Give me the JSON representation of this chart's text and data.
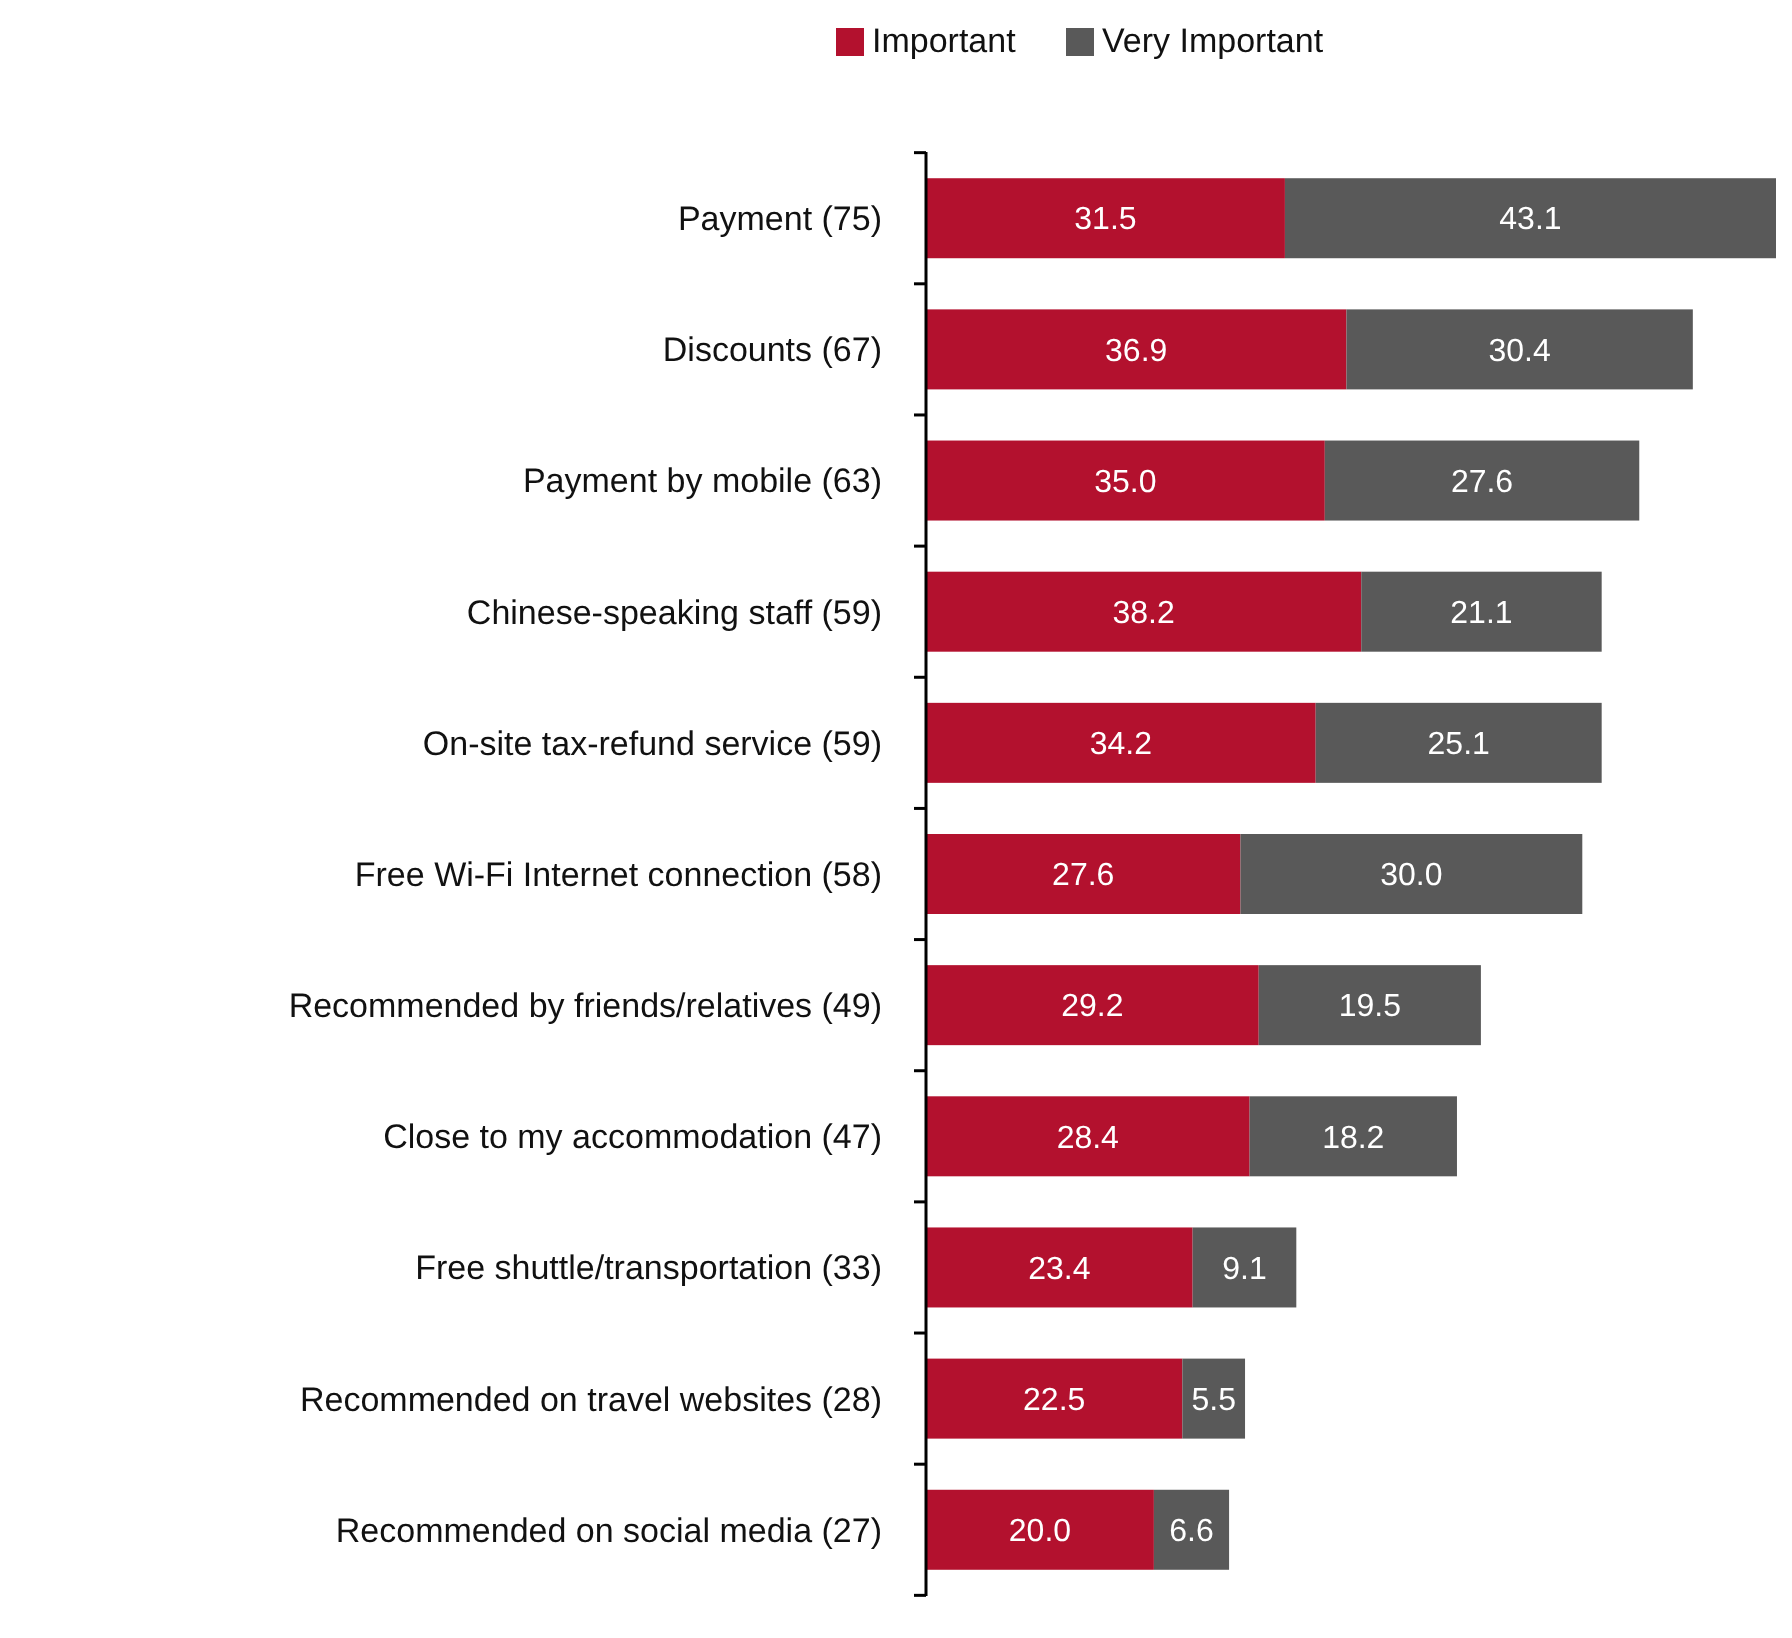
{
  "chart_data": {
    "type": "bar",
    "orientation": "horizontal",
    "stacked": true,
    "legend": "top",
    "categories": [
      "Payment (75)",
      "Discounts (67)",
      "Payment by mobile (63)",
      "Chinese-speaking staff (59)",
      "On-site tax-refund service (59)",
      "Free Wi-Fi Internet connection (58)",
      "Recommended by friends/relatives (49)",
      "Close to my accommodation (47)",
      "Free shuttle/transportation (33)",
      "Recommended on travel websites (28)",
      "Recommended on social media (27)"
    ],
    "series": [
      {
        "name": "Important",
        "color": "#b3112e",
        "values": [
          31.5,
          36.9,
          35,
          38.2,
          34.2,
          27.6,
          29.2,
          28.4,
          23.4,
          22.5,
          20
        ],
        "value_labels": [
          "31.5",
          "36.9",
          "35.0",
          "38.2",
          "34.2",
          "27.6",
          "29.2",
          "28.4",
          "23.4",
          "22.5",
          "20.0"
        ]
      },
      {
        "name": "Very Important",
        "color": "#595959",
        "values": [
          43.1,
          30.4,
          27.6,
          21.1,
          25.1,
          30,
          19.5,
          18.2,
          9.1,
          5.5,
          6.6
        ],
        "value_labels": [
          "43.1",
          "30.4",
          "27.6",
          "21.1",
          "25.1",
          "30.0",
          "19.5",
          "18.2",
          "9.1",
          "5.5",
          "6.6"
        ]
      }
    ]
  }
}
